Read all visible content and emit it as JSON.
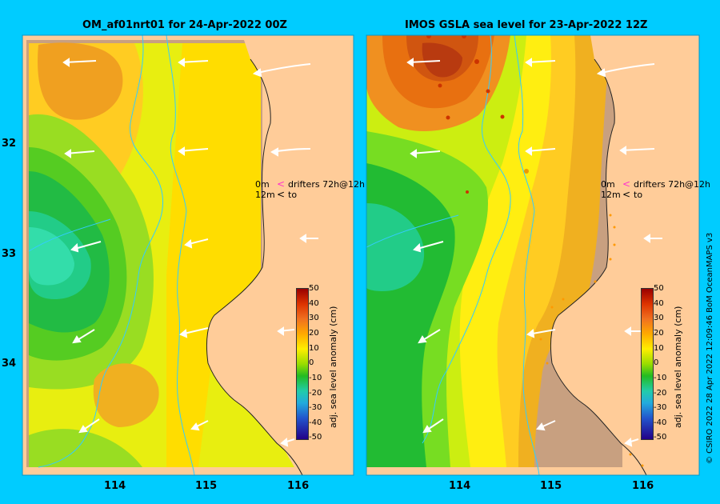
{
  "panels": [
    {
      "title": "OM_af01nrt01 for 24-Apr-2022 00Z"
    },
    {
      "title": "IMOS GSLA sea level  for 23-Apr-2022 12Z"
    }
  ],
  "legend": {
    "line1_depth": "0m",
    "line1_text": "drifters 72h@12h",
    "line2_depth": "12m",
    "line2_text": "to"
  },
  "y_ticks": [
    "32",
    "33",
    "34"
  ],
  "x_ticks": [
    "114",
    "115",
    "116"
  ],
  "colorbar": {
    "title": "adj. sea level anomaly (cm)",
    "ticks": [
      "50",
      "40",
      "30",
      "20",
      "10",
      "0",
      "-10",
      "-20",
      "-30",
      "-40",
      "-50"
    ]
  },
  "credit": "© CSIRO 2022    28 Apr 2022 12:09:46 BoM OceanMAPS v3",
  "colors": {
    "ocean_bg": "#ffcc99",
    "land": "#c8a080",
    "frame": "#00ccff",
    "coastline": "#222222",
    "current_arrow": "#ffffff",
    "bathymetry": "#33ccff"
  }
}
